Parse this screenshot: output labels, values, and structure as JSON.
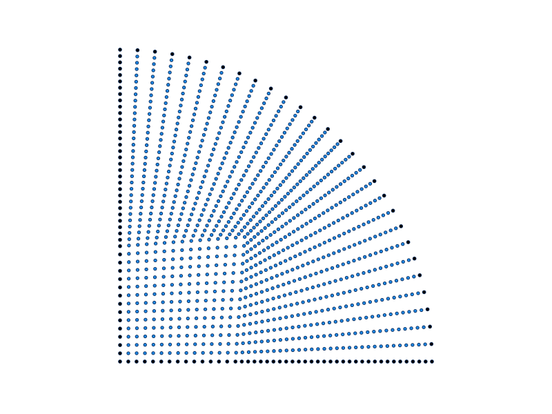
{
  "figure": {
    "description_type": "quarter-disk structured mesh",
    "shape": "quarter-circle",
    "inner_block_shape": "square",
    "radial_layers": 31,
    "inner_grid_divisions": 14,
    "interior_node_color": "#1e88e5",
    "boundary_node_color": "#000000",
    "line_color": "#0a2a5a",
    "background_color": "#ffffff"
  }
}
